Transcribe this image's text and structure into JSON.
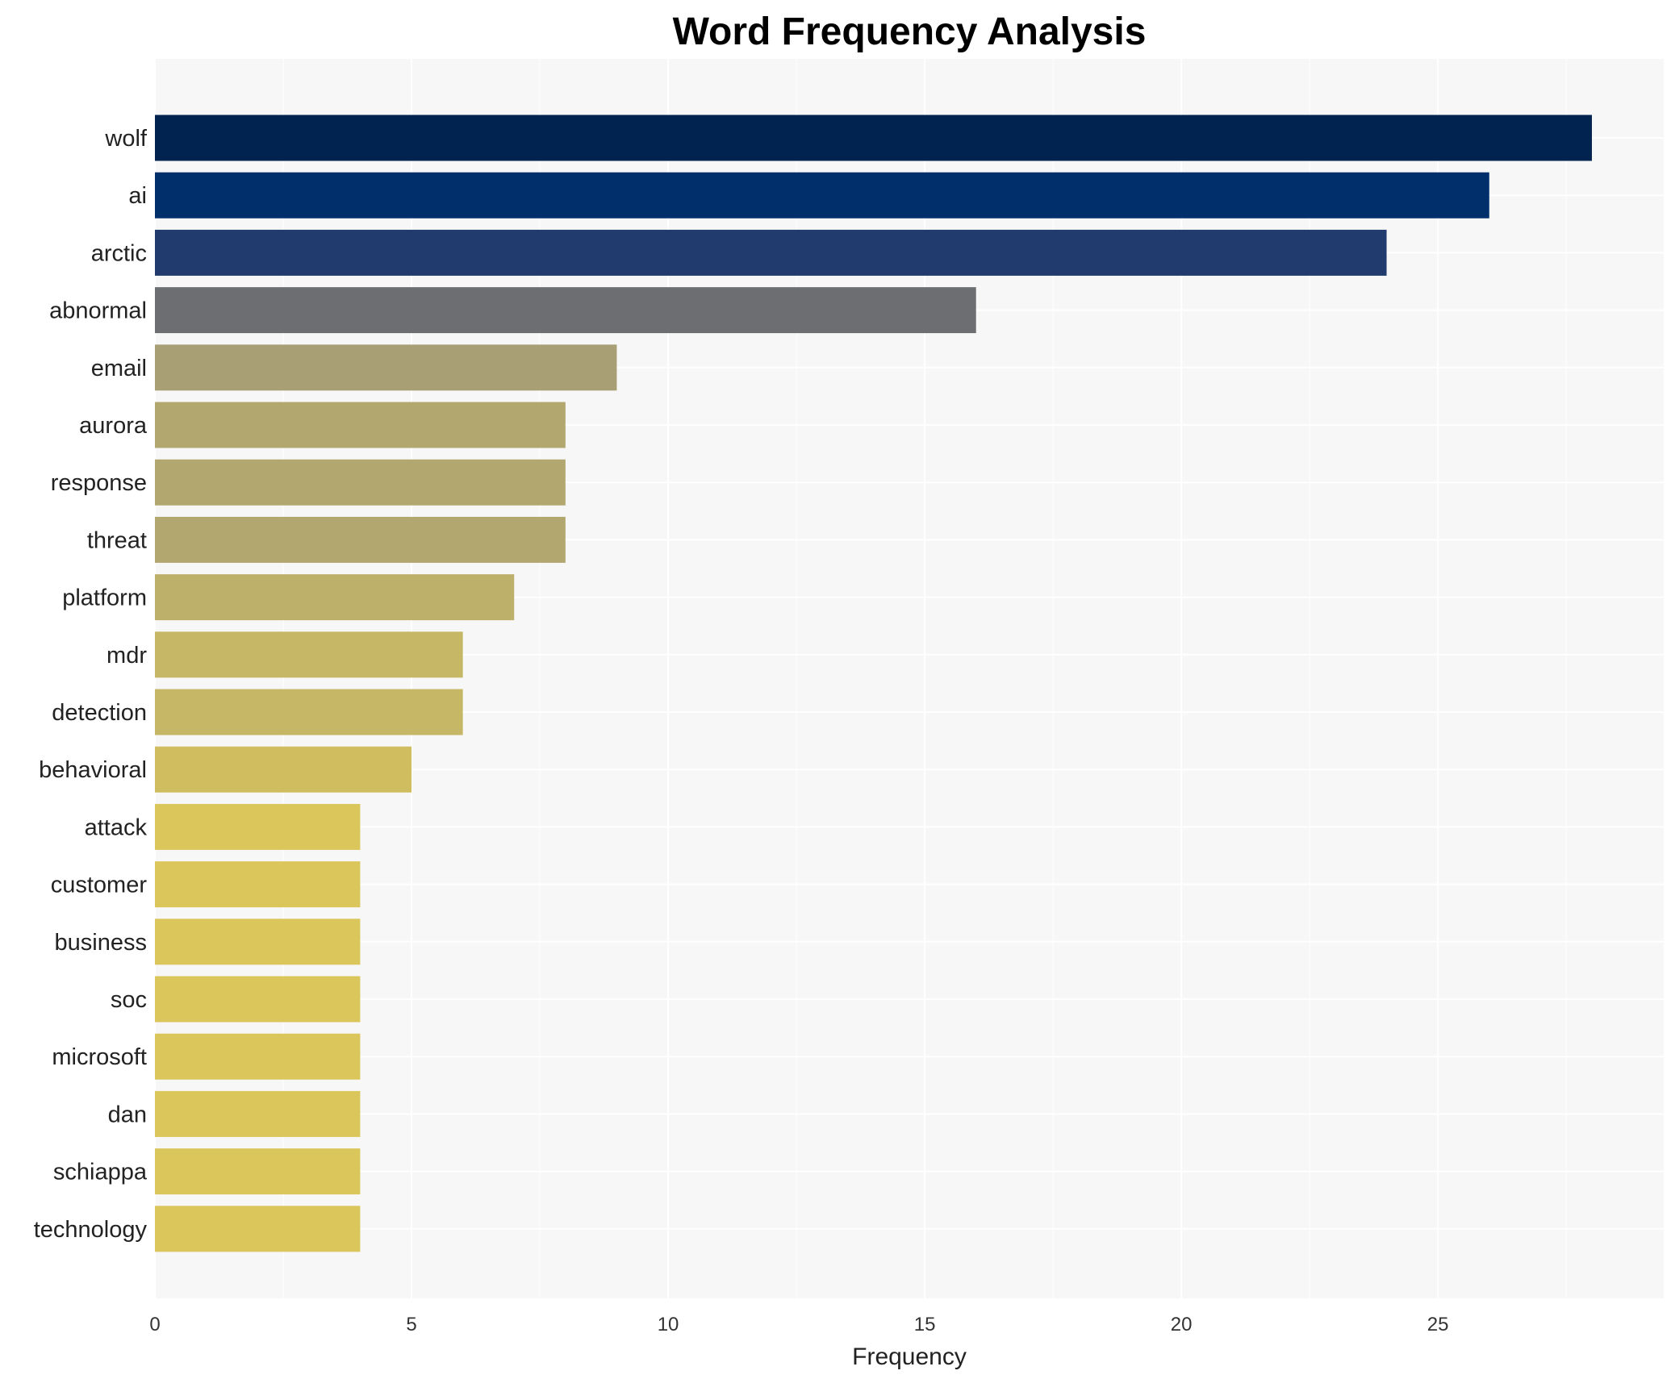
{
  "chart_data": {
    "type": "bar",
    "orientation": "horizontal",
    "title": "Word Frequency Analysis",
    "xlabel": "Frequency",
    "ylabel": "",
    "xlim": [
      0,
      29.4
    ],
    "xticks": [
      0,
      5,
      10,
      15,
      20,
      25
    ],
    "grid": true,
    "categories": [
      "wolf",
      "ai",
      "arctic",
      "abnormal",
      "email",
      "aurora",
      "response",
      "threat",
      "platform",
      "mdr",
      "detection",
      "behavioral",
      "attack",
      "customer",
      "business",
      "soc",
      "microsoft",
      "dan",
      "schiappa",
      "technology"
    ],
    "values": [
      28,
      26,
      24,
      16,
      9,
      8,
      8,
      8,
      7,
      6,
      6,
      5,
      4,
      4,
      4,
      4,
      4,
      4,
      4,
      4
    ],
    "colors": [
      "#00234f",
      "#002f6c",
      "#213b6e",
      "#6d6e71",
      "#a89f74",
      "#b2a76f",
      "#b2a76f",
      "#b2a76f",
      "#bdb06b",
      "#c6b766",
      "#c6b766",
      "#cfbd60",
      "#dbc65c",
      "#dbc65c",
      "#dbc65c",
      "#dbc65c",
      "#dbc65c",
      "#dbc65c",
      "#dbc65c",
      "#dbc65c"
    ],
    "background": "#f7f7f7"
  }
}
